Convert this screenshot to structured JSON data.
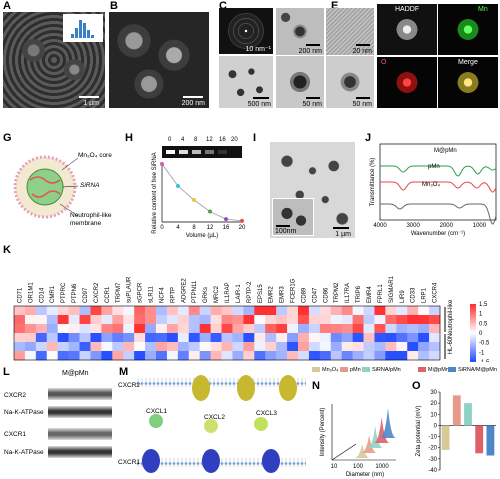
{
  "panels": {
    "A": {
      "label": "A",
      "scale": "1 µm"
    },
    "B": {
      "label": "B",
      "scale": "200 nm"
    },
    "C": {
      "label": "C",
      "scale": "10 nm⁻¹"
    },
    "D": {
      "label": "D",
      "scale": "500 nm"
    },
    "E": {
      "label": "E",
      "scale1": "200 nm",
      "scale2": "20 nm"
    },
    "E2": {
      "scale": "50 nm"
    },
    "F": {
      "label": "F",
      "scale": "50 nm"
    },
    "haadf": {
      "channels": [
        "HADDF",
        "Mn",
        "O",
        "Merge"
      ]
    },
    "G": {
      "label": "G",
      "core": "Mn₃O₄ core",
      "sirna": "SiRNA",
      "membrane": "Neutrophil-like membrane"
    },
    "H": {
      "label": "H",
      "gel_labels": [
        "0",
        "4",
        "8",
        "12",
        "16",
        "20"
      ],
      "ylabel": "Relative content of free SiRNA",
      "xlabel": "Volume (µL)"
    },
    "I": {
      "label": "I",
      "scale1": "100nm",
      "scale2": "1 µm"
    },
    "J": {
      "label": "J",
      "ylabel": "Transmittance (%)",
      "xlabel": "Wavenumber (cm⁻¹)",
      "xticks": [
        "4000",
        "3000",
        "2000",
        "1000"
      ]
    },
    "K": {
      "label": "K",
      "colorbar_ticks": [
        "1.5",
        "1",
        "0.5",
        "0",
        "-0.5",
        "-1",
        "-1.5"
      ],
      "row_groups": [
        "Neutrophil-like",
        "HL-60"
      ]
    },
    "L": {
      "label": "L",
      "title": "M@pMn",
      "rows": [
        "CXCR2",
        "Na-K-ATPase",
        "CXCR1",
        "Na-K-ATPase"
      ]
    },
    "M": {
      "label": "M",
      "labels": [
        "CXCR2",
        "CXCL1",
        "CXCL2",
        "CXCL3",
        "CXCR1"
      ]
    },
    "N": {
      "label": "N",
      "xlabel": "Diameter (nm)",
      "ylabel": "Intensity (Percent)",
      "xticks": [
        "10",
        "100",
        "1000"
      ]
    },
    "O": {
      "label": "O",
      "ylabel": "Zeta potential (mV)",
      "yticks": [
        "30",
        "20",
        "10",
        "0",
        "-10",
        "-20",
        "-30",
        "-40"
      ]
    }
  },
  "legend_no": {
    "items": [
      {
        "name": "Mn₃O₄",
        "color": "#d8c99a"
      },
      {
        "name": "pMn",
        "color": "#e89a8a"
      },
      {
        "name": "SiRNA/pMn",
        "color": "#8fd3c8"
      },
      {
        "name": "M@pMn",
        "color": "#e0606a"
      },
      {
        "name": "SiRNA/M@pMn",
        "color": "#4f86c6"
      }
    ]
  },
  "k_genes": [
    "CD71",
    "OR1M1",
    "CD14",
    "CMR1",
    "PTPRC",
    "PTPN6",
    "CD97",
    "CXCR2",
    "CCR1",
    "TRPM7",
    "suPLAUR",
    "sGPCR",
    "sLR11",
    "NCF4",
    "RPTP",
    "ADGRE2",
    "PTPN11",
    "GRKs",
    "MRC2",
    "IL1RAP",
    "LAIR-1",
    "RPTP-2",
    "EPS15",
    "EMR2",
    "EMR3",
    "FCER1G",
    "CD89",
    "CD47",
    "CD86",
    "TRPM2",
    "IL17RA",
    "TRIP6",
    "EMR4",
    "FPRL1",
    "SIGMAR1",
    "LIR9",
    "CD33",
    "LRP1",
    "CXCR4"
  ],
  "chart_data": [
    {
      "type": "line",
      "panel": "H",
      "title": "",
      "xlabel": "Volume (µL)",
      "ylabel": "Relative content of free SiRNA",
      "x": [
        0,
        4,
        8,
        12,
        16,
        20
      ],
      "series": [
        {
          "values": [
            1.0,
            0.62,
            0.38,
            0.18,
            0.05,
            0.02
          ]
        }
      ],
      "point_colors": [
        "#d25aa0",
        "#3cc0e0",
        "#f0c040",
        "#50a050",
        "#9050c0",
        "#e05050"
      ],
      "xlim": [
        0,
        20
      ],
      "ylim": [
        0,
        1
      ]
    },
    {
      "type": "line",
      "panel": "J",
      "xlabel": "Wavenumber (cm⁻¹)",
      "ylabel": "Transmittance (%)",
      "xlim": [
        4000,
        500
      ],
      "series": [
        {
          "name": "M@pMn",
          "color": "#2e9e4a"
        },
        {
          "name": "pMn",
          "color": "#e04848"
        },
        {
          "name": "Mn₃O₄",
          "color": "#666666"
        }
      ]
    },
    {
      "type": "bar",
      "panel": "O",
      "ylabel": "Zeta potential (mV)",
      "categories": [
        "Mn₃O₄",
        "pMn",
        "SiRNA/pMn",
        "M@pMn",
        "SiRNA/M@pMn"
      ],
      "values": [
        -22,
        27,
        20,
        -25,
        -27
      ],
      "colors": [
        "#d8c99a",
        "#e89a8a",
        "#8fd3c8",
        "#e0606a",
        "#4f86c6"
      ],
      "ylim": [
        -40,
        30
      ]
    },
    {
      "type": "area",
      "panel": "N",
      "xlabel": "Diameter (nm)",
      "ylabel": "Intensity (Percent)",
      "series": [
        {
          "name": "Mn₃O₄",
          "peak": 150,
          "color": "#d8c99a"
        },
        {
          "name": "pMn",
          "peak": 180,
          "color": "#e89a8a"
        },
        {
          "name": "SiRNA/pMn",
          "peak": 200,
          "color": "#8fd3c8"
        },
        {
          "name": "M@pMn",
          "peak": 230,
          "color": "#e0606a"
        },
        {
          "name": "SiRNA/M@pMn",
          "peak": 260,
          "color": "#4f86c6"
        }
      ]
    }
  ]
}
